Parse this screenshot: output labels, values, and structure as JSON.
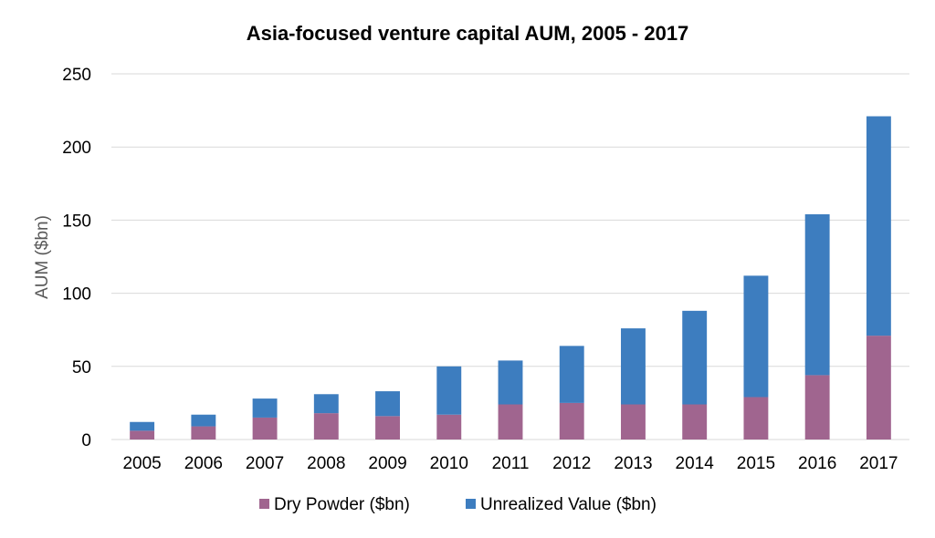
{
  "chart_data": {
    "type": "bar",
    "stacked": true,
    "title": "Asia-focused venture capital AUM, 2005 - 2017",
    "xlabel": "",
    "ylabel": "AUM ($bn)",
    "ylim": [
      0,
      250
    ],
    "yticks": [
      "0",
      "50",
      "100",
      "150",
      "200",
      "250"
    ],
    "categories": [
      "2005",
      "2006",
      "2007",
      "2008",
      "2009",
      "2010",
      "2011",
      "2012",
      "2013",
      "2014",
      "2015",
      "2016",
      "2017"
    ],
    "series": [
      {
        "name": "Dry Powder ($bn)",
        "color": "#a0658f",
        "values": [
          6,
          9,
          15,
          18,
          16,
          17,
          24,
          25,
          24,
          24,
          29,
          44,
          71
        ]
      },
      {
        "name": "Unrealized Value ($bn)",
        "color": "#3d7dbf",
        "values": [
          6,
          8,
          13,
          13,
          17,
          33,
          30,
          39,
          52,
          64,
          83,
          110,
          150
        ]
      }
    ],
    "grid": true,
    "legend_position": "bottom"
  }
}
